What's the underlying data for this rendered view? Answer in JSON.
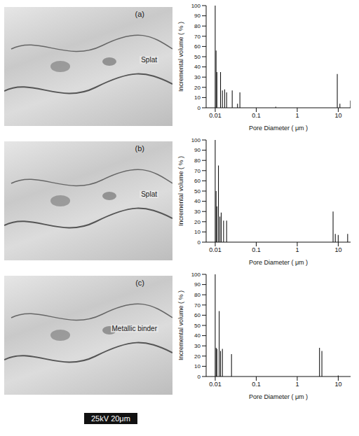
{
  "chart_data": [
    {
      "type": "bar",
      "x": [
        0.01,
        0.0105,
        0.011,
        0.0135,
        0.015,
        0.017,
        0.019,
        0.026,
        0.035,
        0.04,
        0.3,
        9.5,
        11,
        20
      ],
      "values": [
        100,
        56,
        35,
        35,
        17,
        18,
        15,
        17,
        4,
        15,
        1,
        33,
        4,
        7
      ],
      "x_label": "Pore Diameter ( μm )",
      "y_label": "Incremental volume ( % )",
      "xlim": [
        0.006,
        20
      ],
      "xticks": [
        0.01,
        0.1,
        1,
        10
      ],
      "ylim": [
        0,
        100
      ],
      "yticks": [
        0,
        10,
        20,
        30,
        40,
        50,
        60,
        70,
        80,
        90,
        100
      ],
      "log": "x",
      "grid": false,
      "color": "#111111"
    },
    {
      "type": "bar",
      "x": [
        0.01,
        0.0105,
        0.011,
        0.012,
        0.013,
        0.014,
        0.016,
        0.019,
        7.5,
        8.5,
        10,
        17
      ],
      "values": [
        100,
        50,
        35,
        75,
        25,
        29,
        21,
        21,
        30,
        8,
        7,
        8
      ],
      "x_label": "Pore Diameter ( μm )",
      "y_label": "Incremental volume ( % )",
      "xlim": [
        0.006,
        20
      ],
      "xticks": [
        0.01,
        0.1,
        1,
        10
      ],
      "ylim": [
        0,
        100
      ],
      "yticks": [
        0,
        10,
        20,
        30,
        40,
        50,
        60,
        70,
        80,
        90,
        100
      ],
      "log": "x",
      "grid": false,
      "color": "#111111"
    },
    {
      "type": "bar",
      "x": [
        0.01,
        0.0105,
        0.011,
        0.0125,
        0.0135,
        0.015,
        0.025,
        3.5,
        4,
        10
      ],
      "values": [
        100,
        28,
        27,
        64,
        25,
        27,
        22,
        28,
        25,
        1
      ],
      "x_label": "Pore Diameter ( μm )",
      "y_label": "Incremental volume ( % )",
      "xlim": [
        0.006,
        20
      ],
      "xticks": [
        0.01,
        0.1,
        1,
        10
      ],
      "ylim": [
        0,
        100
      ],
      "yticks": [
        0,
        10,
        20,
        30,
        40,
        50,
        60,
        70,
        80,
        90,
        100
      ],
      "log": "x",
      "grid": false,
      "color": "#111111"
    }
  ],
  "micrographs": [
    {
      "label": "(a)",
      "annotation": "Splat"
    },
    {
      "label": "(b)",
      "annotation": "Splat"
    },
    {
      "label": "(c)",
      "annotation": "Metallic binder"
    }
  ],
  "scale_bar": "25kV 20μm"
}
